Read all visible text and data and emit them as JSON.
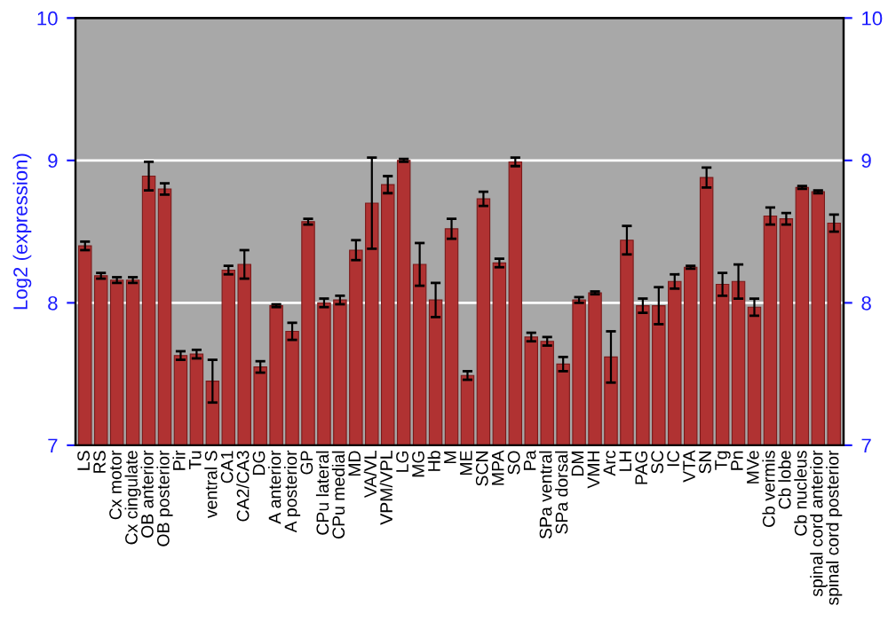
{
  "chart_data": {
    "type": "bar",
    "ylabel": "Log2 (expression)",
    "categories": [
      "LS",
      "RS",
      "Cx motor",
      "Cx cingulate",
      "OB anterior",
      "OB posterior",
      "Pir",
      "Tu",
      "ventral S",
      "CA1",
      "CA2/CA3",
      "DG",
      "A anterior",
      "A posterior",
      "GP",
      "CPu lateral",
      "CPu medial",
      "MD",
      "VA/VL",
      "VPM/VPL",
      "LG",
      "MG",
      "Hb",
      "M",
      "ME",
      "SCN",
      "MPA",
      "SO",
      "Pa",
      "SPa ventral",
      "SPa dorsal",
      "DM",
      "VMH",
      "Arc",
      "LH",
      "PAG",
      "SC",
      "IC",
      "VTA",
      "SN",
      "Tg",
      "Pn",
      "MVe",
      "Cb vermis",
      "Cb lobe",
      "Cb nucleus",
      "spinal cord anterior",
      "spinal cord posterior"
    ],
    "series": [
      {
        "color": "#b03232",
        "values": [
          8.4,
          8.19,
          8.16,
          8.16,
          8.89,
          8.8,
          7.63,
          7.64,
          7.45,
          8.23,
          8.27,
          7.55,
          7.98,
          7.8,
          8.57,
          8.0,
          8.02,
          8.37,
          8.7,
          8.83,
          9.0,
          8.27,
          8.02,
          8.52,
          7.49,
          8.73,
          8.28,
          8.99,
          7.76,
          7.73,
          7.57,
          8.02,
          8.07,
          7.62,
          8.44,
          7.98,
          7.98,
          8.15,
          8.25,
          8.88,
          8.13,
          8.15,
          7.97,
          8.61,
          8.59,
          8.81,
          8.78,
          8.56
        ],
        "errors": [
          0.03,
          0.02,
          0.02,
          0.02,
          0.1,
          0.04,
          0.03,
          0.03,
          0.15,
          0.03,
          0.1,
          0.04,
          0.01,
          0.06,
          0.02,
          0.03,
          0.03,
          0.07,
          0.32,
          0.06,
          0.01,
          0.15,
          0.12,
          0.07,
          0.03,
          0.05,
          0.03,
          0.03,
          0.03,
          0.03,
          0.05,
          0.02,
          0.01,
          0.18,
          0.1,
          0.05,
          0.13,
          0.05,
          0.01,
          0.07,
          0.08,
          0.12,
          0.06,
          0.06,
          0.04,
          0.01,
          0.01,
          0.06
        ]
      }
    ],
    "ylim": [
      7,
      10
    ],
    "yticks": [
      7,
      8,
      9,
      10
    ],
    "y2lim": [
      7,
      10
    ],
    "y2ticks": [
      7,
      8,
      9,
      10
    ],
    "grid": "y"
  }
}
